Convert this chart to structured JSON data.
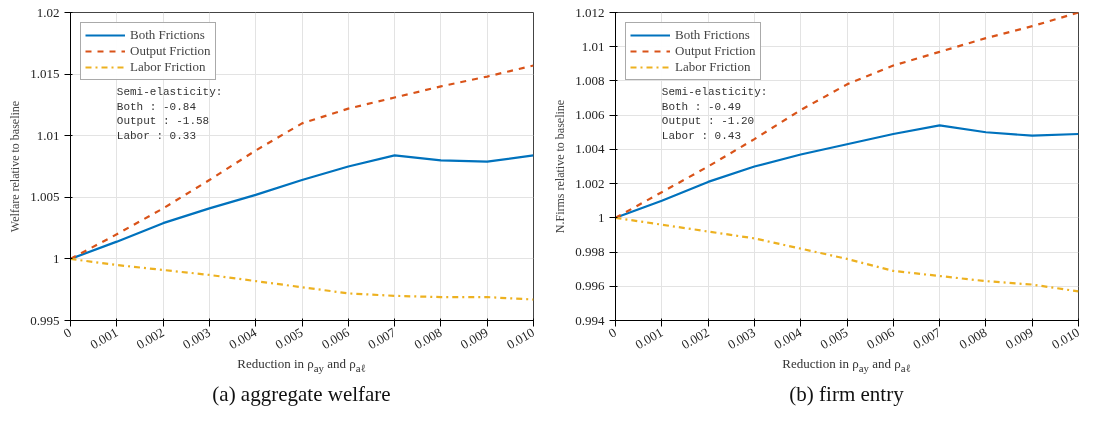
{
  "chart_data": [
    {
      "type": "line",
      "title": "(a) aggregate welfare",
      "xlabel": "Reduction in ρ$_{ay}$ and ρ$_{aℓ}$",
      "ylabel": "Welfare relative to baseline",
      "annotations": [
        "Semi-elasticity:\nBoth   : -0.84\nOutput : -1.58\nLabor  : 0.33"
      ],
      "x": [
        0,
        0.001,
        0.002,
        0.003,
        0.004,
        0.005,
        0.006,
        0.007,
        0.008,
        0.009,
        0.01
      ],
      "series": [
        {
          "name": "Both Frictions",
          "color": "#0072bd",
          "line_style": "solid",
          "values": [
            1.0,
            1.0014,
            1.0029,
            1.0041,
            1.0052,
            1.0064,
            1.0075,
            1.0084,
            1.008,
            1.0079,
            1.0084
          ]
        },
        {
          "name": "Output Friction",
          "color": "#d95319",
          "line_style": "dashed",
          "values": [
            1.0,
            1.002,
            1.0041,
            1.0064,
            1.0088,
            1.011,
            1.0122,
            1.0131,
            1.014,
            1.0148,
            1.0157
          ]
        },
        {
          "name": "Labor Friction",
          "color": "#edb120",
          "line_style": "dashdot",
          "values": [
            1.0,
            0.9995,
            0.9991,
            0.9987,
            0.9982,
            0.9977,
            0.9972,
            0.997,
            0.9969,
            0.9969,
            0.9967
          ]
        }
      ],
      "xlim": [
        0,
        0.01
      ],
      "ylim": [
        0.995,
        1.02
      ],
      "xticks": [
        0,
        0.001,
        0.002,
        0.003,
        0.004,
        0.005,
        0.006,
        0.007,
        0.008,
        0.009,
        {
          "value": 0.01,
          "label": "0.010"
        }
      ],
      "yticks": [
        0.995,
        1,
        1.005,
        1.01,
        1.015,
        1.02
      ],
      "grid": true,
      "legend": "top left"
    },
    {
      "type": "line",
      "title": "(b) firm entry",
      "xlabel": "Reduction in ρ$_{ay}$ and ρ$_{aℓ}$",
      "ylabel": "N.Firms relative to baseline",
      "annotations": [
        "Semi-elasticity:\nBoth   : -0.49\nOutput : -1.20\nLabor  : 0.43"
      ],
      "x": [
        0,
        0.001,
        0.002,
        0.003,
        0.004,
        0.005,
        0.006,
        0.007,
        0.008,
        0.009,
        0.01
      ],
      "series": [
        {
          "name": "Both Frictions",
          "color": "#0072bd",
          "line_style": "solid",
          "values": [
            1.0,
            1.001,
            1.0021,
            1.003,
            1.0037,
            1.0043,
            1.0049,
            1.0054,
            1.005,
            1.0048,
            1.0049
          ]
        },
        {
          "name": "Output Friction",
          "color": "#d95319",
          "line_style": "dashed",
          "values": [
            1.0,
            1.0015,
            1.003,
            1.0046,
            1.0063,
            1.0078,
            1.0089,
            1.0097,
            1.0105,
            1.0112,
            1.012
          ]
        },
        {
          "name": "Labor Friction",
          "color": "#edb120",
          "line_style": "dashdot",
          "values": [
            1.0,
            0.9996,
            0.9992,
            0.9988,
            0.9982,
            0.9976,
            0.9969,
            0.9966,
            0.9963,
            0.9961,
            0.9957
          ]
        }
      ],
      "xlim": [
        0,
        0.01
      ],
      "ylim": [
        0.994,
        1.012
      ],
      "xticks": [
        0,
        0.001,
        0.002,
        0.003,
        0.004,
        0.005,
        0.006,
        0.007,
        0.008,
        0.009,
        {
          "value": 0.01,
          "label": "0.010"
        }
      ],
      "yticks": [
        0.994,
        0.996,
        0.998,
        1,
        1.002,
        1.004,
        1.006,
        1.008,
        1.01,
        1.012
      ],
      "grid": true,
      "legend": "top left"
    }
  ]
}
